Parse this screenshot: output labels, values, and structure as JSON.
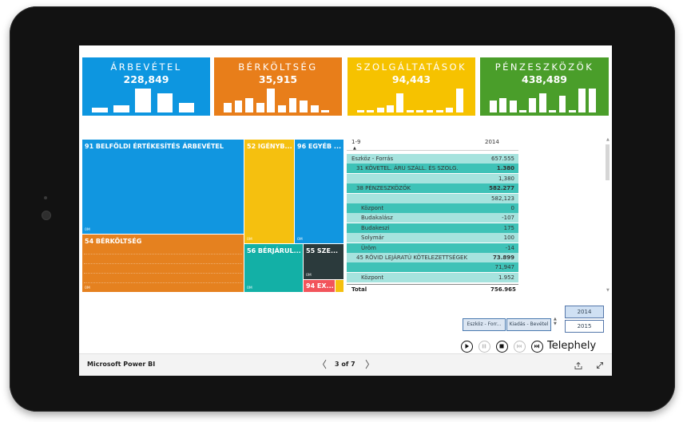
{
  "kpis": [
    {
      "title": "ÁRBEVÉTEL",
      "value": "228,849",
      "color": "#0d96e0",
      "level_values": [
        2,
        3,
        10,
        8,
        4
      ]
    },
    {
      "title": "BÉRKÖLTSÉG",
      "value": "35,915",
      "color": "#e87e1a",
      "level_values": [
        4,
        5,
        6,
        4,
        10,
        3,
        6,
        5,
        3,
        1
      ]
    },
    {
      "title": "SZOLGÁLTATÁSOK",
      "value": "94,443",
      "color": "#f6c200",
      "level_values": [
        1,
        1,
        2,
        3,
        8,
        1,
        1,
        1,
        1,
        2,
        10
      ]
    },
    {
      "title": "PÉNZESZKÖZÖK",
      "value": "438,489",
      "color": "#4a9e2a",
      "level_values": [
        5,
        6,
        5,
        1,
        6,
        8,
        1,
        7,
        1,
        10,
        10
      ]
    }
  ],
  "treemap": {
    "tiles": [
      {
        "label": "91 BELFÖLDI ÉRTÉKESÍTÉS ÁRBEVÉTEL",
        "note": "0M",
        "color": "#1196e0"
      },
      {
        "label": "52 IGÉNYB...",
        "note": "0M",
        "color": "#f5c00f"
      },
      {
        "label": "96 EGYÉB ...",
        "note": "0M",
        "color": "#1196e0"
      },
      {
        "label": "54 BÉRKÖLTSÉG",
        "note": "0M",
        "color": "#e5811f"
      },
      {
        "label": "56 BÉRJÁRUL...",
        "note": "0M",
        "color": "#13b0a6"
      },
      {
        "label": "55 SZE...",
        "note": "0M",
        "color": "#2b3a3c"
      },
      {
        "label": "94 EX...",
        "note": "",
        "color": "#f2545b"
      }
    ]
  },
  "matrix": {
    "header_left": "1-9",
    "header_right": "2014",
    "rows": [
      {
        "label": "Eszköz - Forrás",
        "value": "657.555",
        "indent": 0,
        "shade": "#a6e3de",
        "bold": false
      },
      {
        "label": "31 KÖVETEL. ÁRU SZÁLL. ÉS SZOLG.",
        "value": "1.380",
        "indent": 1,
        "shade": "#3ec2b7",
        "bold": true
      },
      {
        "label": "",
        "value": "1,380",
        "indent": 1,
        "shade": "#a6e3de",
        "bold": false
      },
      {
        "label": "38 PÉNZESZKÖZÖK",
        "value": "582.277",
        "indent": 1,
        "shade": "#3ec2b7",
        "bold": true
      },
      {
        "label": "",
        "value": "582,123",
        "indent": 1,
        "shade": "#a6e3de",
        "bold": false
      },
      {
        "label": "Központ",
        "value": "0",
        "indent": 2,
        "shade": "#3ec2b7",
        "bold": false
      },
      {
        "label": "Budakalász",
        "value": "-107",
        "indent": 2,
        "shade": "#a6e3de",
        "bold": false
      },
      {
        "label": "Budakeszi",
        "value": "175",
        "indent": 2,
        "shade": "#3ec2b7",
        "bold": false
      },
      {
        "label": "Solymár",
        "value": "100",
        "indent": 2,
        "shade": "#a6e3de",
        "bold": false
      },
      {
        "label": "Üröm",
        "value": "-14",
        "indent": 2,
        "shade": "#3ec2b7",
        "bold": false
      },
      {
        "label": "45 RÖVID LEJÁRATÚ KÖTELEZETTSÉGEK",
        "value": "73.899",
        "indent": 1,
        "shade": "#a6e3de",
        "bold": true
      },
      {
        "label": "",
        "value": "71,947",
        "indent": 1,
        "shade": "#3ec2b7",
        "bold": false
      },
      {
        "label": "Központ",
        "value": "1.952",
        "indent": 2,
        "shade": "#a6e3de",
        "bold": false
      }
    ],
    "total_label": "Total",
    "total_value": "756.965"
  },
  "slicers": {
    "chips": [
      "Eszköz - Forr...",
      "Kiadás - Bevétel"
    ],
    "years": [
      "2014",
      "2015"
    ]
  },
  "playback": {
    "label": "Telephely"
  },
  "footer": {
    "brand": "Microsoft Power BI",
    "page": "3 of 7",
    "prev": "〈",
    "next": "〉"
  }
}
